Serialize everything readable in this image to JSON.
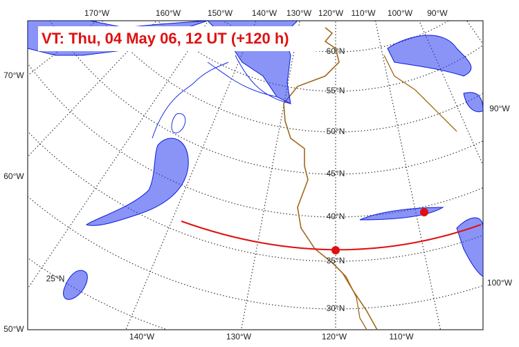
{
  "title": "VT:  Thu, 04 May 06, 12 UT (+120 h)",
  "top_labels": [
    "170°W",
    "160°W",
    "150°W",
    "140°W",
    "130°W",
    "120°W",
    "110°W",
    "100°W",
    "90°W"
  ],
  "bottom_labels": [
    "140°W",
    "130°W",
    "120°W",
    "110°W"
  ],
  "left_labels": [
    "70°W",
    "60°W",
    "50°W"
  ],
  "right_labels": [
    "90°W",
    "100°W"
  ],
  "lat_labels": [
    "60°N",
    "55°N",
    "50°N",
    "45°N",
    "40°N",
    "35°N",
    "30°N",
    "25°N"
  ]
}
